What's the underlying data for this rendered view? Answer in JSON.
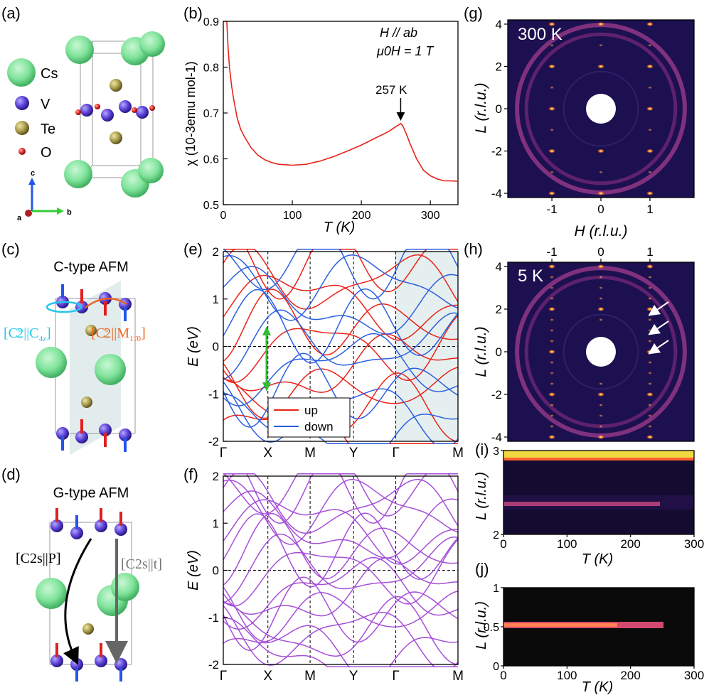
{
  "figure": {
    "panel_labels": {
      "a": "(a)",
      "b": "(b)",
      "c": "(c)",
      "d": "(d)",
      "e": "(e)",
      "f": "(f)",
      "g": "(g)",
      "h": "(h)",
      "i": "(i)",
      "j": "(j)"
    },
    "colors": {
      "cs": "#7fe39a",
      "v": "#5b3fd6",
      "te": "#a89a4a",
      "o": "#e02020",
      "up": "#e8231a",
      "down": "#2b5fe0",
      "purple": "#a54fd8",
      "bg_dark": "#1c1050",
      "green_arrow": "#33bb33",
      "cyan": "#22c8e8",
      "orange": "#ee6622"
    },
    "panel_a": {
      "legend": [
        {
          "name": "Cs"
        },
        {
          "name": "V"
        },
        {
          "name": "Te"
        },
        {
          "name": "O"
        }
      ],
      "axes": {
        "c": "c",
        "a": "a",
        "b": "b"
      }
    },
    "panel_c": {
      "title": "C-type AFM",
      "label_left": "[C",
      "label_left_sub": "s",
      "label_left_rest": "2||C",
      "label_left_rest_sub": "4z",
      "label_left_close": "]",
      "label_right": "[C",
      "label_right_sub": "s",
      "label_right_rest": "2||M",
      "label_right_rest_sub": "11̄0",
      "label_right_close": "]"
    },
    "panel_d": {
      "title": "G-type AFM",
      "label_left": "[C2s||P]",
      "label_right": "[C2s||t]"
    },
    "panel_e": {
      "legend_up": "up",
      "legend_down": "down"
    },
    "band_axis": {
      "ylabel": "E (eV)",
      "yticks": [
        "2",
        "1",
        "0",
        "-1",
        "-2"
      ],
      "kpoints": [
        "Γ",
        "X",
        "M",
        "Y",
        "Γ",
        "M"
      ]
    },
    "panel_g": {
      "temp": "300 K",
      "xlabel": "H (r.l.u.)",
      "ylabel": "L (r.l.u.)",
      "xticks": [
        "-1",
        "0",
        "1"
      ],
      "yticks": [
        "4",
        "2",
        "0",
        "-2",
        "-4"
      ]
    },
    "panel_h": {
      "temp": "5 K",
      "ylabel": "L (r.l.u.)",
      "xticks": [
        "-1",
        "0",
        "1"
      ],
      "yticks": [
        "4",
        "2",
        "0",
        "-2",
        "-4"
      ]
    },
    "panel_i": {
      "ylabel": "L (r.l.u.)",
      "xlabel": "T (K)",
      "xticks": [
        "0",
        "100",
        "200",
        "300"
      ],
      "yticks": [
        "3",
        "2"
      ]
    },
    "panel_j": {
      "ylabel": "L (r.l.u.)",
      "xlabel": "T (K)",
      "xticks": [
        "0",
        "100",
        "200",
        "300"
      ],
      "yticks": [
        "1",
        "0.5",
        "0"
      ]
    }
  },
  "chart_data": {
    "type": "line",
    "title": "",
    "annotation_params": "H // ab, μ0H = 1 T",
    "annotation_field": "H // ab",
    "annotation_field2": "μ0H = 1 T",
    "annotation_peak": "257 K",
    "xlabel": "T (K)",
    "ylabel": "χ (10-3emu mol-1)",
    "xlim": [
      0,
      340
    ],
    "ylim": [
      0.5,
      0.9
    ],
    "xticks": [
      0,
      100,
      200,
      300
    ],
    "yticks": [
      0.5,
      0.6,
      0.7,
      0.8,
      0.9
    ],
    "series": [
      {
        "name": "chi",
        "x": [
          5,
          7,
          9,
          12,
          15,
          20,
          25,
          30,
          40,
          50,
          60,
          70,
          80,
          100,
          120,
          140,
          160,
          180,
          200,
          220,
          240,
          250,
          255,
          257,
          260,
          265,
          270,
          280,
          290,
          300,
          310,
          320,
          330,
          340
        ],
        "values": [
          0.9,
          0.84,
          0.8,
          0.76,
          0.73,
          0.69,
          0.665,
          0.65,
          0.625,
          0.608,
          0.598,
          0.592,
          0.588,
          0.586,
          0.588,
          0.595,
          0.605,
          0.617,
          0.63,
          0.645,
          0.66,
          0.67,
          0.675,
          0.677,
          0.672,
          0.655,
          0.635,
          0.6,
          0.575,
          0.563,
          0.556,
          0.552,
          0.552,
          0.551
        ]
      }
    ]
  }
}
